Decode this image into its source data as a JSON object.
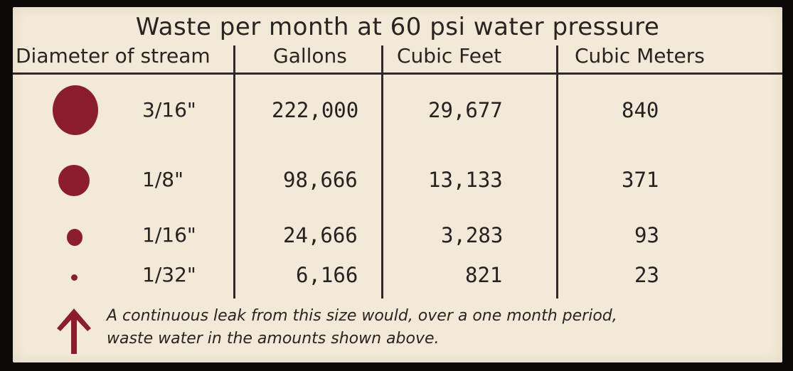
{
  "title": "Waste per month at 60 psi water pressure",
  "columns": [
    "Diameter of stream",
    "Gallons",
    "Cubic Feet",
    "Cubic Meters"
  ],
  "rows": [
    {
      "diameter": "3/16\"",
      "gallons": "222,000",
      "cubic_feet": "29,677",
      "cubic_meters": "840"
    },
    {
      "diameter": "1/8\"",
      "gallons": "98,666",
      "cubic_feet": "13,133",
      "cubic_meters": "371"
    },
    {
      "diameter": "1/16\"",
      "gallons": "24,666",
      "cubic_feet": "3,283",
      "cubic_meters": "93"
    },
    {
      "diameter": "1/32\"",
      "gallons": "6,166",
      "cubic_feet": "821",
      "cubic_meters": "23"
    }
  ],
  "note": {
    "line1": "A continuous leak from this size would, over a one month period,",
    "line2": "waste water in the amounts shown above."
  },
  "colors": {
    "background": "#f3e9d8",
    "accent": "#8c1d2e",
    "text": "#2a2320"
  },
  "icons": [
    "stream-dot",
    "up-arrow-icon"
  ]
}
